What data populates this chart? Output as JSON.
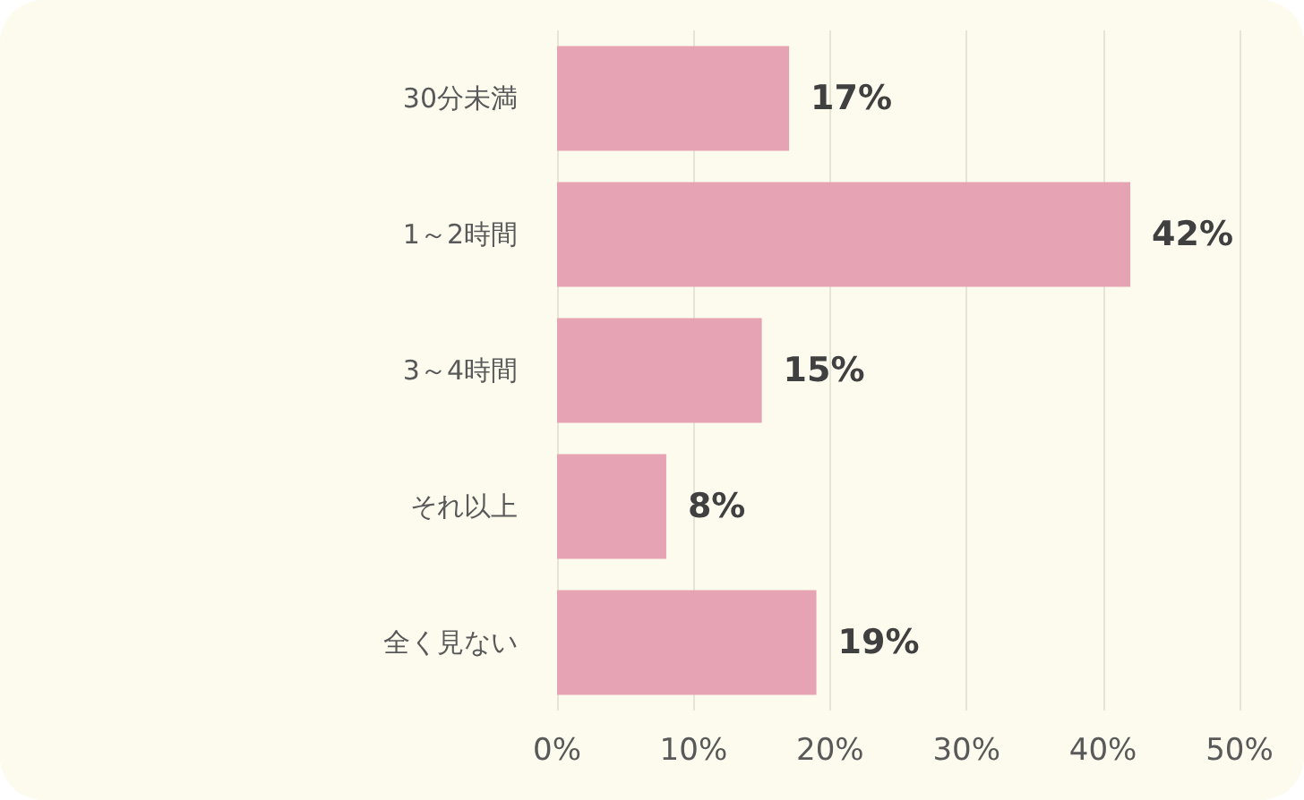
{
  "chart_data": {
    "type": "bar",
    "orientation": "horizontal",
    "categories": [
      "30分未満",
      "1～2時間",
      "3～4時間",
      "それ以上",
      "全く見ない"
    ],
    "values": [
      17,
      42,
      15,
      8,
      19
    ],
    "value_labels": [
      "17%",
      "42%",
      "15%",
      "8%",
      "19%"
    ],
    "color": "#e6a3b3",
    "xlim": [
      0,
      50
    ],
    "xticks": [
      {
        "value": 0,
        "label": "0%"
      },
      {
        "value": 10,
        "label": "10%"
      },
      {
        "value": 20,
        "label": "20%"
      },
      {
        "value": 30,
        "label": "30%"
      },
      {
        "value": 40,
        "label": "40%"
      },
      {
        "value": 50,
        "label": "50%"
      }
    ],
    "grid": "x"
  }
}
